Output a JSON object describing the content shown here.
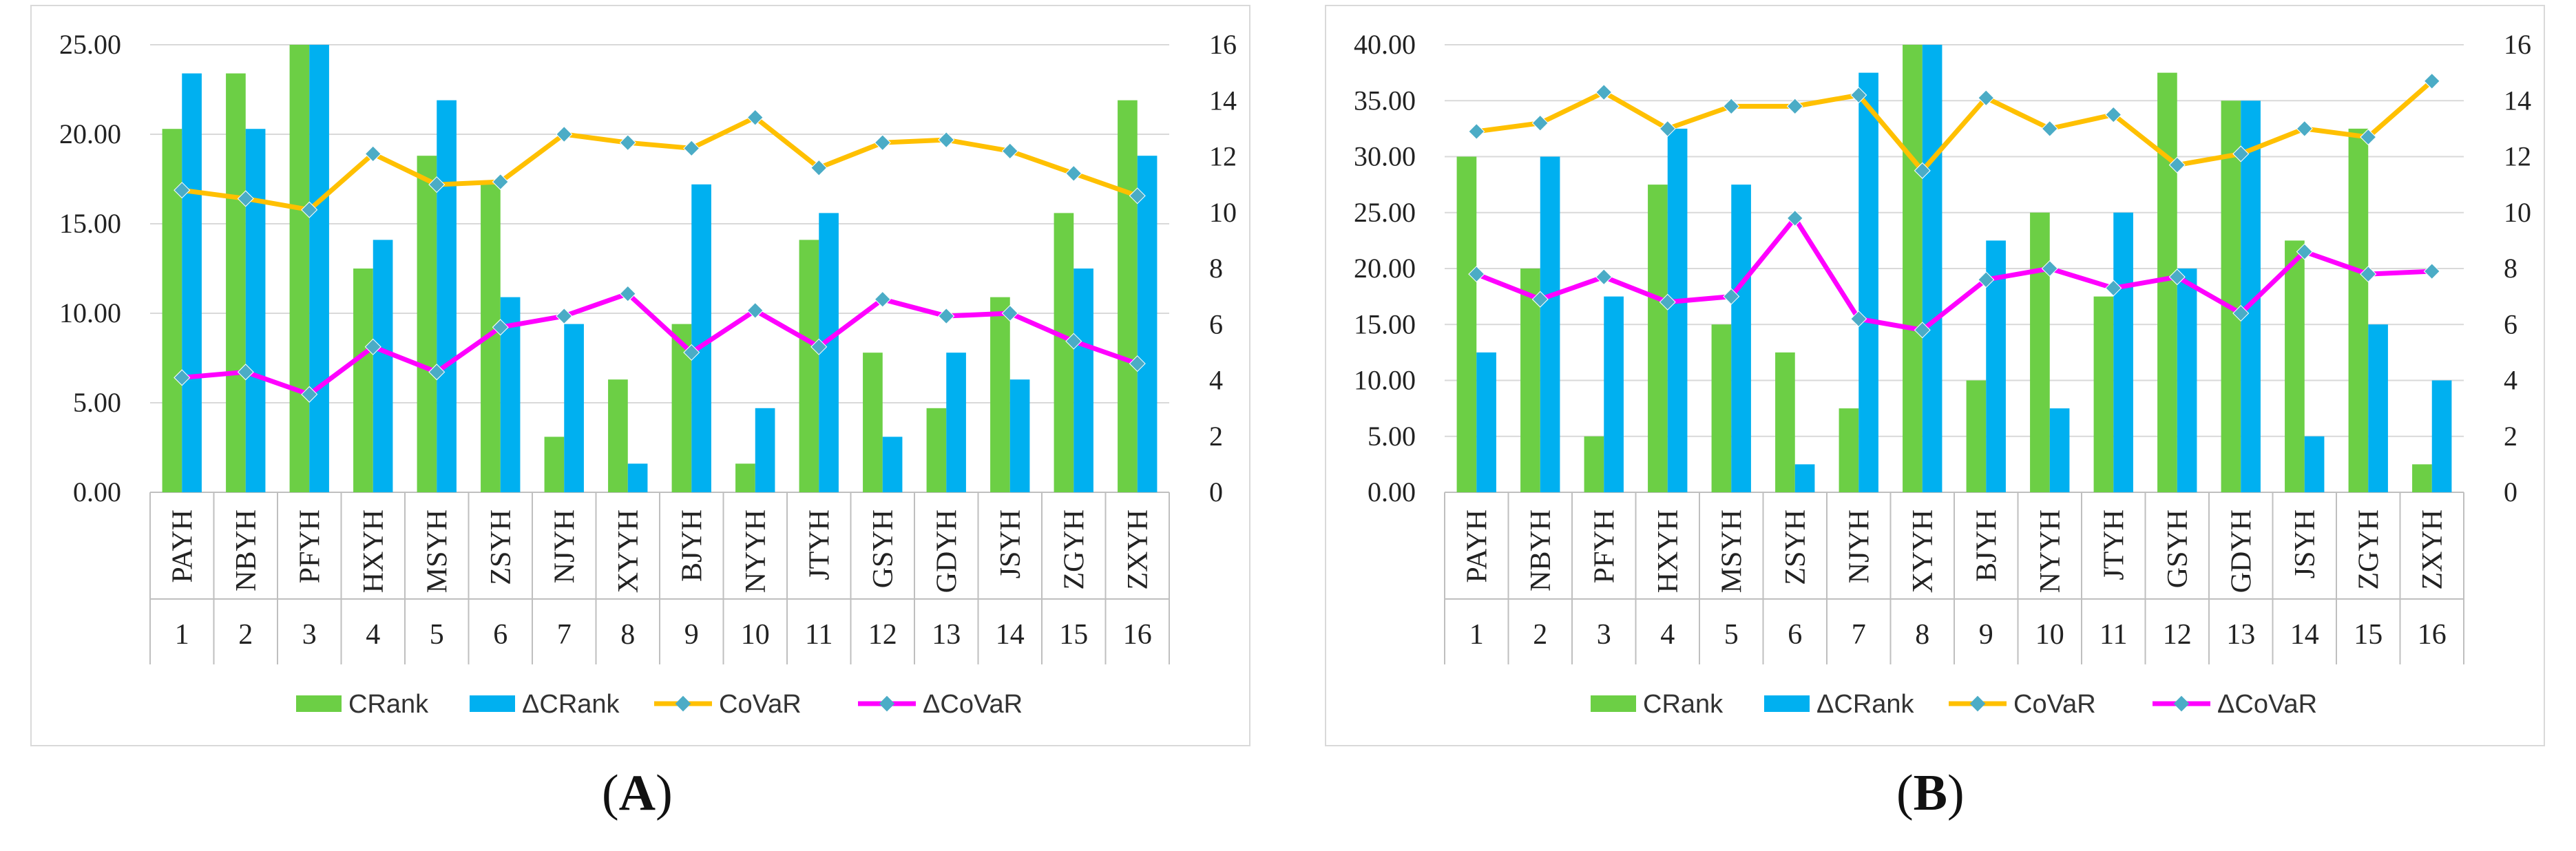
{
  "colors": {
    "crank": "#6ccf45",
    "dcrank": "#00b0f0",
    "covar": "#ffc000",
    "dcovar": "#ff00ff",
    "marker": "#4bacc6",
    "grid": "#d9d9d9",
    "axis": "#bfbfbf"
  },
  "legend": {
    "crank": "CRank",
    "dcrank": "ΔCRank",
    "covar": "CoVaR",
    "dcovar": "ΔCoVaR"
  },
  "panel_labels": {
    "a": {
      "open": "(",
      "letter": "A",
      "close": ")"
    },
    "b": {
      "open": "(",
      "letter": "B",
      "close": ")"
    }
  },
  "chart_data": [
    {
      "type": "bar",
      "panel": "A",
      "categories": [
        "PAYH",
        "NBYH",
        "PFYH",
        "HXYH",
        "MSYH",
        "ZSYH",
        "NJYH",
        "XYYH",
        "BJYH",
        "NYYH",
        "JTYH",
        "GSYH",
        "GDYH",
        "JSYH",
        "ZGYH",
        "ZXYH"
      ],
      "indices": [
        "1",
        "2",
        "3",
        "4",
        "5",
        "6",
        "7",
        "8",
        "9",
        "10",
        "11",
        "12",
        "13",
        "14",
        "15",
        "16"
      ],
      "ylim_left": [
        0,
        25
      ],
      "yticks_left": [
        "0.00",
        "5.00",
        "10.00",
        "15.00",
        "20.00",
        "25.00"
      ],
      "ylim_right": [
        0,
        16
      ],
      "yticks_right": [
        "0",
        "2",
        "4",
        "6",
        "8",
        "10",
        "12",
        "14",
        "16"
      ],
      "series": [
        {
          "name": "CRank",
          "axis": "left",
          "kind": "bar",
          "values": [
            20.3,
            23.4,
            25.0,
            12.5,
            18.8,
            17.2,
            3.1,
            6.3,
            9.4,
            1.6,
            14.1,
            7.8,
            4.7,
            10.9,
            15.6,
            21.9
          ]
        },
        {
          "name": "ΔCRank",
          "axis": "left",
          "kind": "bar",
          "values": [
            23.4,
            20.3,
            25.0,
            14.1,
            21.9,
            10.9,
            9.4,
            1.6,
            17.2,
            4.7,
            15.6,
            3.1,
            7.8,
            6.3,
            12.5,
            18.8
          ]
        },
        {
          "name": "CoVaR",
          "axis": "right",
          "kind": "line",
          "values": [
            10.8,
            10.5,
            10.1,
            12.1,
            11.0,
            11.1,
            12.8,
            12.5,
            12.3,
            13.4,
            11.6,
            12.5,
            12.6,
            12.2,
            11.4,
            10.6
          ]
        },
        {
          "name": "ΔCoVaR",
          "axis": "right",
          "kind": "line",
          "values": [
            4.1,
            4.3,
            3.5,
            5.2,
            4.3,
            5.9,
            6.3,
            7.1,
            5.0,
            6.5,
            5.2,
            6.9,
            6.3,
            6.4,
            5.4,
            4.6
          ]
        }
      ]
    },
    {
      "type": "bar",
      "panel": "B",
      "categories": [
        "PAYH",
        "NBYH",
        "PFYH",
        "HXYH",
        "MSYH",
        "ZSYH",
        "NJYH",
        "XYYH",
        "BJYH",
        "NYYH",
        "JTYH",
        "GSYH",
        "GDYH",
        "JSYH",
        "ZGYH",
        "ZXYH"
      ],
      "indices": [
        "1",
        "2",
        "3",
        "4",
        "5",
        "6",
        "7",
        "8",
        "9",
        "10",
        "11",
        "12",
        "13",
        "14",
        "15",
        "16"
      ],
      "ylim_left": [
        0,
        40
      ],
      "yticks_left": [
        "0.00",
        "5.00",
        "10.00",
        "15.00",
        "20.00",
        "25.00",
        "30.00",
        "35.00",
        "40.00"
      ],
      "ylim_right": [
        0,
        16
      ],
      "yticks_right": [
        "0",
        "2",
        "4",
        "6",
        "8",
        "10",
        "12",
        "14",
        "16"
      ],
      "series": [
        {
          "name": "CRank",
          "axis": "left",
          "kind": "bar",
          "values": [
            30.0,
            20.0,
            5.0,
            27.5,
            15.0,
            12.5,
            7.5,
            40.0,
            10.0,
            25.0,
            17.5,
            37.5,
            35.0,
            22.5,
            32.5,
            2.5
          ]
        },
        {
          "name": "ΔCRank",
          "axis": "left",
          "kind": "bar",
          "values": [
            12.5,
            30.0,
            17.5,
            32.5,
            27.5,
            2.5,
            37.5,
            40.0,
            22.5,
            7.5,
            25.0,
            20.0,
            35.0,
            5.0,
            15.0,
            10.0
          ]
        },
        {
          "name": "CoVaR",
          "axis": "right",
          "kind": "line",
          "values": [
            12.9,
            13.2,
            14.3,
            13.0,
            13.8,
            13.8,
            14.2,
            11.5,
            14.1,
            13.0,
            13.5,
            11.7,
            12.1,
            13.0,
            12.7,
            14.7
          ]
        },
        {
          "name": "ΔCoVaR",
          "axis": "right",
          "kind": "line",
          "values": [
            7.8,
            6.9,
            7.7,
            6.8,
            7.0,
            9.8,
            6.2,
            5.8,
            7.6,
            8.0,
            7.3,
            7.7,
            6.4,
            8.6,
            7.8,
            7.9
          ]
        }
      ]
    }
  ]
}
